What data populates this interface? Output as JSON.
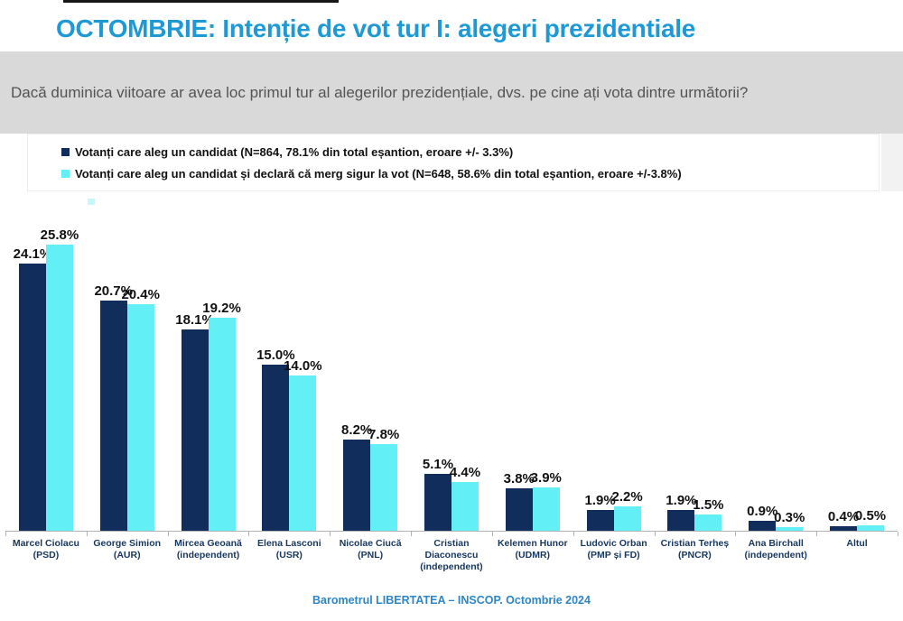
{
  "title": "OCTOMBRIE: Intenție de vot tur I: alegeri prezidentiale",
  "question": "Dacă duminica viitoare ar avea loc primul tur al alegerilor prezidențiale, dvs. pe cine ați vota dintre următorii?",
  "legend": {
    "items": [
      {
        "label": "Votanți care aleg un candidat (N=864, 78.1% din total eșantion, eroare +/- 3.3%)",
        "color": "#102d5c"
      },
      {
        "label": "Votanți care aleg un candidat și declară că merg sigur la vot (N=648, 58.6% din total eșantion, eroare +/-3.8%)",
        "color": "#62f0f6"
      }
    ]
  },
  "footer": "Barometrul LIBERTATEA – INSCOP. Octombrie 2024",
  "colors": {
    "navy": "#102d5c",
    "cyan": "#62f0f6",
    "title_blue": "#1d9ad6",
    "footer_blue": "#2e86c8",
    "category_label": "#17375e",
    "question_bg": "#d9d9d9"
  },
  "chart_data": {
    "type": "bar",
    "title": "OCTOMBRIE: Intenție de vot tur I: alegeri prezidentiale",
    "unit": "%",
    "ylim": [
      0,
      28
    ],
    "grid": false,
    "legend_position": "top",
    "categories": [
      [
        "Marcel Ciolacu",
        "(PSD)"
      ],
      [
        "George Simion",
        "(AUR)"
      ],
      [
        "Mircea Geoană",
        "(independent)"
      ],
      [
        "Elena Lasconi",
        "(USR)"
      ],
      [
        "Nicolae Ciucă",
        "(PNL)"
      ],
      [
        "Cristian",
        "Diaconescu",
        "(independent)"
      ],
      [
        "Kelemen Hunor",
        "(UDMR)"
      ],
      [
        "Ludovic Orban",
        "(PMP și FD)"
      ],
      [
        "Cristian Terheș",
        "(PNCR)"
      ],
      [
        "Ana Birchall",
        "(independent)"
      ],
      [
        "Altul"
      ]
    ],
    "series": [
      {
        "name": "Votanți care aleg un candidat",
        "color": "#102d5c",
        "values": [
          24.1,
          20.7,
          18.1,
          15.0,
          8.2,
          5.1,
          3.8,
          1.9,
          1.9,
          0.9,
          0.4
        ]
      },
      {
        "name": "Votanți care aleg un candidat și declară că merg sigur la vot",
        "color": "#62f0f6",
        "values": [
          25.8,
          20.4,
          19.2,
          14.0,
          7.8,
          4.4,
          3.9,
          2.2,
          1.5,
          0.3,
          0.5
        ]
      }
    ]
  }
}
